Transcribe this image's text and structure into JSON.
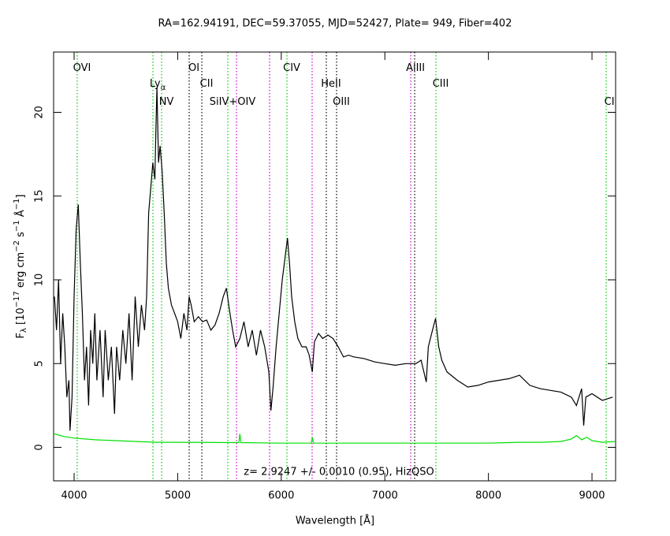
{
  "chart_data": {
    "type": "line",
    "title": "RA=162.94191, DEC=59.37055, MJD=52427, Plate= 949, Fiber=402",
    "xlabel": "Wavelength [Å]",
    "ylabel": [
      {
        "text": "F"
      },
      {
        "text": "λ",
        "sub": true
      },
      {
        "text": " [10"
      },
      {
        "text": "−17",
        "sup": true
      },
      {
        "text": " erg cm"
      },
      {
        "text": "−2",
        "sup": true
      },
      {
        "text": " s"
      },
      {
        "text": "−1",
        "sup": true
      },
      {
        "text": " Å"
      },
      {
        "text": "−1",
        "sup": true
      },
      {
        "text": "]"
      }
    ],
    "annotation": "z= 2.9247 +/- 0.0010 (0.95), HizQSO",
    "xlim": [
      3802,
      9228
    ],
    "ylim": [
      -2,
      23.6
    ],
    "xticks": [
      4000,
      5000,
      6000,
      7000,
      8000,
      9000
    ],
    "yticks": [
      0,
      5,
      10,
      15,
      20
    ],
    "series": [
      {
        "color": "#000000",
        "x": [
          3810,
          3830,
          3850,
          3870,
          3890,
          3910,
          3930,
          3950,
          3960,
          3980,
          4000,
          4020,
          4040,
          4060,
          4080,
          4100,
          4120,
          4140,
          4160,
          4180,
          4200,
          4220,
          4250,
          4280,
          4300,
          4330,
          4360,
          4390,
          4410,
          4440,
          4470,
          4500,
          4530,
          4560,
          4590,
          4620,
          4650,
          4680,
          4700,
          4720,
          4740,
          4760,
          4780,
          4790,
          4800,
          4815,
          4830,
          4850,
          4870,
          4890,
          4910,
          4940,
          4970,
          5000,
          5030,
          5060,
          5090,
          5110,
          5130,
          5160,
          5200,
          5240,
          5280,
          5320,
          5360,
          5400,
          5440,
          5470,
          5500,
          5530,
          5560,
          5600,
          5640,
          5680,
          5720,
          5760,
          5800,
          5840,
          5880,
          5900,
          5920,
          5950,
          5980,
          6010,
          6040,
          6060,
          6080,
          6100,
          6130,
          6160,
          6200,
          6240,
          6270,
          6300,
          6320,
          6360,
          6400,
          6450,
          6500,
          6550,
          6600,
          6650,
          6700,
          6800,
          6900,
          7000,
          7100,
          7200,
          7300,
          7350,
          7400,
          7420,
          7460,
          7490,
          7520,
          7550,
          7600,
          7700,
          7800,
          7900,
          8000,
          8100,
          8200,
          8300,
          8400,
          8500,
          8600,
          8700,
          8800,
          8850,
          8900,
          8920,
          8940,
          9000,
          9100,
          9200
        ],
        "values": [
          9,
          7,
          10,
          5,
          8,
          6,
          3,
          4,
          1,
          3,
          9,
          13,
          14.5,
          11,
          8,
          4,
          6,
          2.5,
          7,
          5,
          8,
          4,
          7,
          3,
          7,
          4,
          6,
          2,
          6,
          4,
          7,
          5,
          8,
          4,
          9,
          6,
          8.5,
          7,
          9,
          14,
          15.5,
          17,
          16,
          19,
          21.5,
          17,
          18,
          16.5,
          14,
          11,
          9.5,
          8.5,
          8,
          7.5,
          6.5,
          8,
          7,
          9,
          8.5,
          7.5,
          7.8,
          7.5,
          7.6,
          7,
          7.3,
          8,
          9,
          9.5,
          8.2,
          7,
          6,
          6.5,
          7.5,
          6,
          7,
          5.5,
          7,
          6,
          4.5,
          2.2,
          3.5,
          6,
          8,
          10,
          11.5,
          12.5,
          11,
          9,
          7.5,
          6.5,
          6,
          6,
          5.5,
          4.5,
          6.3,
          6.8,
          6.5,
          6.7,
          6.5,
          6,
          5.4,
          5.5,
          5.4,
          5.3,
          5.1,
          5,
          4.9,
          5,
          5,
          5.2,
          3.9,
          6,
          7,
          7.7,
          6,
          5.2,
          4.5,
          4,
          3.6,
          3.7,
          3.9,
          4,
          4.1,
          4.3,
          3.7,
          3.5,
          3.4,
          3.3,
          3,
          2.5,
          3.5,
          1.3,
          3,
          3.2,
          2.8,
          3
        ]
      },
      {
        "color": "#00e000",
        "x": [
          3810,
          3900,
          4000,
          4200,
          4400,
          4600,
          4800,
          5000,
          5500,
          5590,
          5600,
          5610,
          6000,
          6290,
          6300,
          6310,
          6500,
          7000,
          7500,
          8000,
          8300,
          8500,
          8700,
          8800,
          8850,
          8900,
          8950,
          9000,
          9100,
          9220
        ],
        "values": [
          0.8,
          0.65,
          0.55,
          0.45,
          0.4,
          0.35,
          0.3,
          0.3,
          0.28,
          0.28,
          0.8,
          0.28,
          0.25,
          0.25,
          0.6,
          0.25,
          0.25,
          0.25,
          0.25,
          0.25,
          0.3,
          0.3,
          0.35,
          0.5,
          0.7,
          0.45,
          0.6,
          0.4,
          0.3,
          0.35
        ]
      }
    ],
    "lines": [
      {
        "x": 4030,
        "color": "#00cc00",
        "label": "OVI"
      },
      {
        "x": 4761,
        "color": "#00cc00",
        "label": "Ly",
        "sub": "α"
      },
      {
        "x": 4845,
        "color": "#00cc00",
        "label": "NV"
      },
      {
        "x": 5111,
        "color": "#000000",
        "label": "OI"
      },
      {
        "x": 5233,
        "color": "#000000",
        "label": "CII"
      },
      {
        "x": 5484,
        "color": "#00cc00",
        "label": "SiIV+OIV"
      },
      {
        "x": 5568,
        "color": "#cc00cc"
      },
      {
        "x": 5887,
        "color": "#cc00cc"
      },
      {
        "x": 6055,
        "color": "#00cc00",
        "label": "CIV"
      },
      {
        "x": 6298,
        "color": "#cc00cc"
      },
      {
        "x": 6435,
        "color": "#000000",
        "label": "HeII"
      },
      {
        "x": 6534,
        "color": "#000000",
        "label": "OIII"
      },
      {
        "x": 7250,
        "color": "#cc00cc",
        "label": "AlIII"
      },
      {
        "x": 7288,
        "color": "#000000"
      },
      {
        "x": 7493,
        "color": "#00cc00",
        "label": "CIII"
      },
      {
        "x": 9137,
        "color": "#00cc00",
        "label": "CII"
      }
    ]
  }
}
